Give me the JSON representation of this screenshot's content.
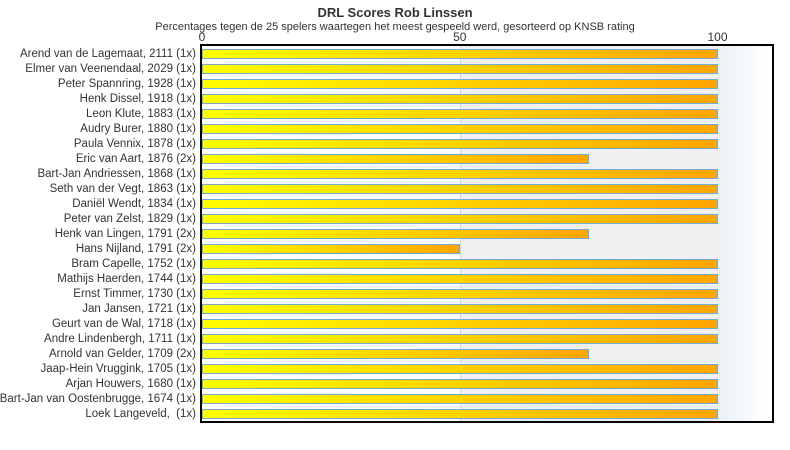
{
  "header": {
    "title": "DRL Scores Rob Linssen",
    "subtitle": "Percentages tegen de 25 spelers waartegen het meest gespeeld werd, gesorteerd op KNSB rating"
  },
  "chart_data": {
    "type": "bar",
    "orientation": "horizontal",
    "title": "DRL Scores Rob Linssen",
    "subtitle": "Percentages tegen de 25 spelers waartegen het meest gespeeld werd, gesorteerd op KNSB rating",
    "categories": [
      "Arend van de Lagemaat, 2111 (1x)",
      "Elmer van Veenendaal, 2029 (1x)",
      "Peter Spannring, 1928 (1x)",
      "Henk Dissel, 1918 (1x)",
      "Leon Klute, 1883 (1x)",
      "Audry Burer, 1880 (1x)",
      "Paula Vennix, 1878 (1x)",
      "Eric van Aart, 1876 (2x)",
      "Bart-Jan Andriessen, 1868 (1x)",
      "Seth van der Vegt, 1863 (1x)",
      "Daniël Wendt, 1834 (1x)",
      "Peter van Zelst, 1829 (1x)",
      "Henk van Lingen, 1791 (2x)",
      "Hans Nijland, 1791 (2x)",
      "Bram Capelle, 1752 (1x)",
      "Mathijs Haerden, 1744 (1x)",
      "Ernst Timmer, 1730 (1x)",
      "Jan Jansen, 1721 (1x)",
      "Geurt van de Wal, 1718 (1x)",
      "Andre Lindenbergh, 1711 (1x)",
      "Arnold van Gelder, 1709 (2x)",
      "Jaap-Hein Vruggink, 1705 (1x)",
      "Arjan Houwers, 1680 (1x)",
      "Bart-Jan van Oostenbrugge, 1674 (1x)",
      "Loek Langeveld,  (1x)"
    ],
    "values": [
      100,
      100,
      100,
      100,
      100,
      100,
      100,
      75,
      100,
      100,
      100,
      100,
      75,
      50,
      100,
      100,
      100,
      100,
      100,
      100,
      75,
      100,
      100,
      100,
      100
    ],
    "xlabel": "",
    "ylabel": "",
    "xlim": [
      0,
      110
    ],
    "x_ticks": [
      0,
      50,
      100
    ],
    "grid": "vertical major gridline at 50",
    "legend": "none",
    "bar_color_start": "#ffff00",
    "bar_color_end": "#ffa500",
    "bar_border_color": "#74a9d8",
    "band_color": "#f0f0f0",
    "gridline_color": "#d6d6d6",
    "plot_border_color": "#000000"
  }
}
